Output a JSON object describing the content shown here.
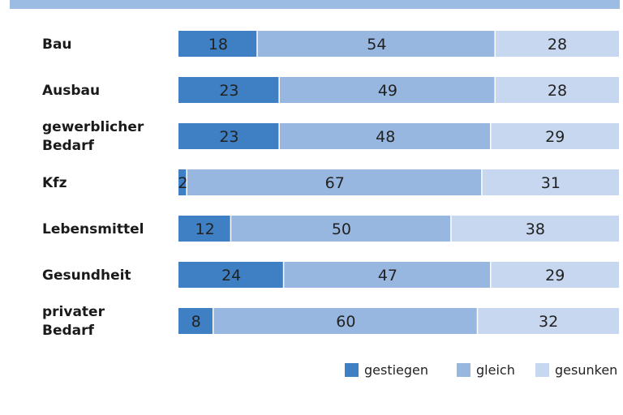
{
  "chart_data": {
    "type": "bar",
    "orientation": "horizontal",
    "stacked": true,
    "unit": "percent",
    "categories": [
      [
        "Bau"
      ],
      [
        "Ausbau"
      ],
      [
        "gewerblicher",
        "Bedarf"
      ],
      [
        "Kfz"
      ],
      [
        "Lebensmittel"
      ],
      [
        "Gesundheit"
      ],
      [
        "privater",
        "Bedarf"
      ]
    ],
    "series": [
      {
        "name": "gestiegen",
        "color": "#3f7fc3",
        "values": [
          18,
          23,
          23,
          2,
          12,
          24,
          8
        ]
      },
      {
        "name": "gleich",
        "color": "#97b7e0",
        "values": [
          54,
          49,
          48,
          67,
          50,
          47,
          60
        ]
      },
      {
        "name": "gesunken",
        "color": "#c6d7ef",
        "values": [
          28,
          28,
          29,
          31,
          38,
          29,
          32
        ]
      }
    ],
    "xlim": [
      0,
      100
    ],
    "legend_position": "bottom-right",
    "grid": false
  },
  "colors": {
    "top_bar": "#9dbce3"
  }
}
